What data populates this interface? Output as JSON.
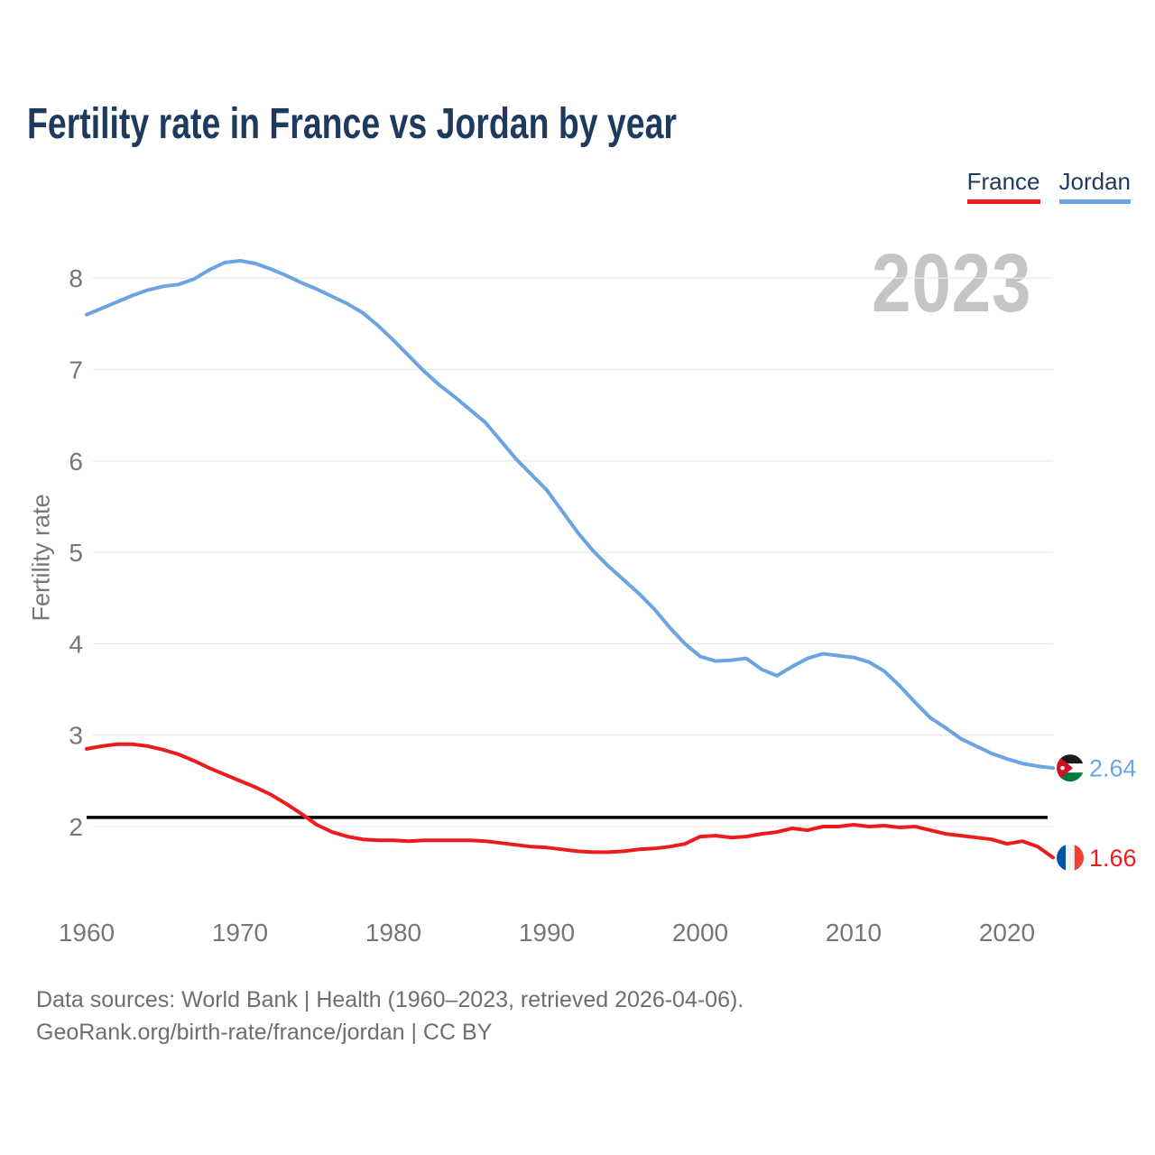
{
  "page": {
    "title": "Fertility rate in France vs Jordan by year",
    "watermark": "2023",
    "footer_line1": "Data sources: World Bank | Health (1960–2023, retrieved 2026-04-06).",
    "footer_line2": "GeoRank.org/birth-rate/france/jordan | CC BY"
  },
  "legend": {
    "items": [
      {
        "label": "France",
        "color": "#ed1c1c"
      },
      {
        "label": "Jordan",
        "color": "#6aa5e2"
      }
    ]
  },
  "colors": {
    "title_text": "#1e3a5f",
    "axis_text": "#767676",
    "gridline": "#e9e9e9",
    "watermark_text": "#c5c5c5",
    "reference_line": "#000000",
    "france_line": "#ed1c1c",
    "jordan_line": "#6aa5e2"
  },
  "chart_data": {
    "type": "line",
    "title": "Fertility rate in France vs Jordan by year",
    "ylabel": "Fertility rate",
    "xlabel": "",
    "grid": true,
    "legend_position": "top-right",
    "x_ticks": [
      1960,
      1970,
      1980,
      1990,
      2000,
      2010,
      2020
    ],
    "y_ticks": [
      2,
      3,
      4,
      5,
      6,
      7,
      8
    ],
    "ylim": [
      1.55,
      8.45
    ],
    "xlim": [
      1960,
      2023
    ],
    "reference_line": {
      "value": 2.1
    },
    "years": [
      1960,
      1961,
      1962,
      1963,
      1964,
      1965,
      1966,
      1967,
      1968,
      1969,
      1970,
      1971,
      1972,
      1973,
      1974,
      1975,
      1976,
      1977,
      1978,
      1979,
      1980,
      1981,
      1982,
      1983,
      1984,
      1985,
      1986,
      1987,
      1988,
      1989,
      1990,
      1991,
      1992,
      1993,
      1994,
      1995,
      1996,
      1997,
      1998,
      1999,
      2000,
      2001,
      2002,
      2003,
      2004,
      2005,
      2006,
      2007,
      2008,
      2009,
      2010,
      2011,
      2012,
      2013,
      2014,
      2015,
      2016,
      2017,
      2018,
      2019,
      2020,
      2021,
      2022,
      2023
    ],
    "series": [
      {
        "name": "France",
        "color": "#ed1c1c",
        "flag": "france",
        "end_label": "1.66",
        "end_value": 1.66,
        "values": [
          2.85,
          2.88,
          2.9,
          2.9,
          2.88,
          2.84,
          2.79,
          2.72,
          2.64,
          2.57,
          2.5,
          2.43,
          2.35,
          2.25,
          2.14,
          2.02,
          1.94,
          1.89,
          1.86,
          1.85,
          1.85,
          1.84,
          1.85,
          1.85,
          1.85,
          1.85,
          1.84,
          1.82,
          1.8,
          1.78,
          1.77,
          1.75,
          1.73,
          1.72,
          1.72,
          1.73,
          1.75,
          1.76,
          1.78,
          1.81,
          1.89,
          1.9,
          1.88,
          1.89,
          1.92,
          1.94,
          1.98,
          1.96,
          2.0,
          2.0,
          2.02,
          2.0,
          2.01,
          1.99,
          2.0,
          1.96,
          1.92,
          1.9,
          1.88,
          1.86,
          1.81,
          1.84,
          1.78,
          1.66
        ]
      },
      {
        "name": "Jordan",
        "color": "#6aa5e2",
        "flag": "jordan",
        "end_label": "2.64",
        "end_value": 2.64,
        "values": [
          7.6,
          7.67,
          7.74,
          7.81,
          7.87,
          7.91,
          7.93,
          7.99,
          8.09,
          8.17,
          8.19,
          8.16,
          8.1,
          8.03,
          7.95,
          7.88,
          7.8,
          7.72,
          7.62,
          7.48,
          7.32,
          7.15,
          6.98,
          6.83,
          6.7,
          6.56,
          6.42,
          6.22,
          6.02,
          5.85,
          5.68,
          5.45,
          5.22,
          5.02,
          4.85,
          4.7,
          4.55,
          4.38,
          4.18,
          4.0,
          3.86,
          3.81,
          3.82,
          3.84,
          3.72,
          3.65,
          3.75,
          3.84,
          3.89,
          3.87,
          3.85,
          3.8,
          3.7,
          3.54,
          3.36,
          3.19,
          3.08,
          2.96,
          2.88,
          2.8,
          2.74,
          2.69,
          2.66,
          2.64
        ]
      }
    ]
  }
}
